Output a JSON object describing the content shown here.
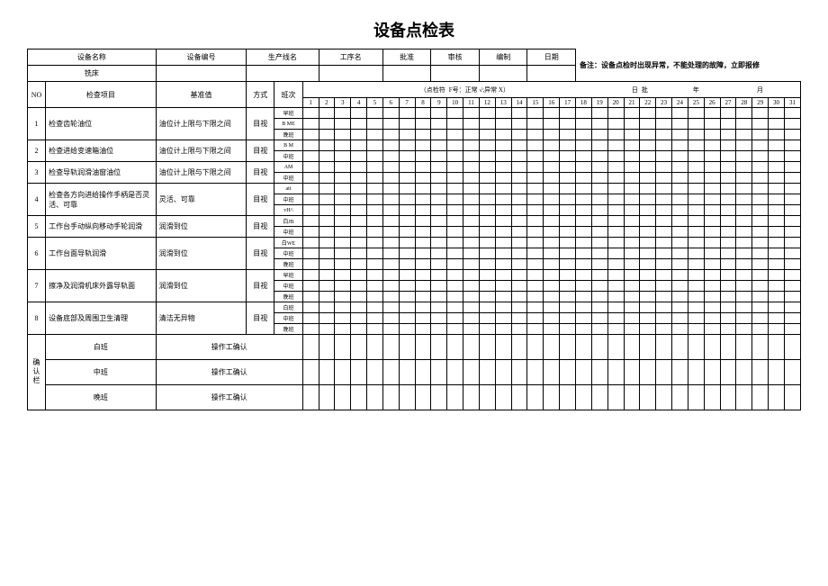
{
  "title": "设备点检表",
  "header": {
    "device_name_label": "设备名称",
    "device_no_label": "设备编号",
    "line_label": "生产线名",
    "process_label": "工序名",
    "approve_label": "批准",
    "review_label": "审核",
    "compile_label": "编制",
    "date_label": "日期",
    "device_name_value": "铣床",
    "note": "备注：设备点检时出现异常，不能处理的故障，立即报修"
  },
  "cols": {
    "no": "NO",
    "item": "检查项目",
    "standard": "基准值",
    "method": "方式",
    "shift": "班次",
    "mark_hint": "（点检符",
    "legend": "F号：正常 √;异常 X）",
    "day_label": "日",
    "batch_label": "批",
    "year_label": "年",
    "month_label": "月"
  },
  "days": [
    "1",
    "2",
    "3",
    "4",
    "5",
    "6",
    "7",
    "8",
    "9",
    "10",
    "11",
    "12",
    "13",
    "14",
    "15",
    "16",
    "17",
    "18",
    "19",
    "20",
    "21",
    "22",
    "23",
    "24",
    "25",
    "26",
    "27",
    "28",
    "29",
    "30",
    "31"
  ],
  "method_val": "目视",
  "rows": [
    {
      "no": "1",
      "item": "检查齿轮油位",
      "std": "油位计上限与下限之间",
      "shifts": [
        "早班",
        "B ME",
        "晚班"
      ]
    },
    {
      "no": "2",
      "item": "检查进给变速箱油位",
      "std": "油位计上限与下限之间",
      "shifts": [
        "B M",
        "中班"
      ]
    },
    {
      "no": "3",
      "item": "检查导轨润滑油窗油位",
      "std": "油位计上限与下限之间",
      "shifts": [
        "AM",
        "中班"
      ]
    },
    {
      "no": "4",
      "item": "检查各方向进给操作手柄是否灵活、可靠",
      "std": "灵活、可靠",
      "shifts": [
        "att",
        "中班",
        "vH/\\"
      ]
    },
    {
      "no": "5",
      "item": "工作台手动纵向移动手轮润滑",
      "std": "润滑到位",
      "shifts": [
        "白JB",
        "中班"
      ]
    },
    {
      "no": "6",
      "item": "工作台面导轨润滑",
      "std": "润滑到位",
      "shifts": [
        "白WE",
        "中班",
        "晚班"
      ]
    },
    {
      "no": "7",
      "item": "擦净及润滑机床外露导轨面",
      "std": "润滑到位",
      "shifts": [
        "早班",
        "中班",
        "晚班"
      ]
    },
    {
      "no": "8",
      "item": "设备底部及周围卫生清理",
      "std": "清洁无异物",
      "shifts": [
        "白班",
        "中班",
        "晚班"
      ]
    }
  ],
  "confirm": {
    "label": "确认栏",
    "rows": [
      {
        "shift": "白班",
        "op": "操作工确认"
      },
      {
        "shift": "中班",
        "op": "操作工确认"
      },
      {
        "shift": "晚班",
        "op": "操作工确认"
      }
    ]
  }
}
